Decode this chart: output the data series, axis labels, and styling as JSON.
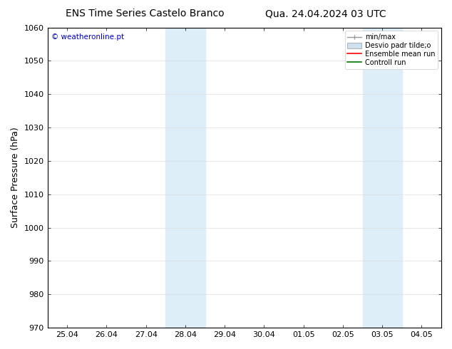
{
  "title_left": "ENS Time Series Castelo Branco",
  "title_right": "Qua. 24.04.2024 03 UTC",
  "ylabel": "Surface Pressure (hPa)",
  "ylim": [
    970,
    1060
  ],
  "yticks": [
    970,
    980,
    990,
    1000,
    1010,
    1020,
    1030,
    1040,
    1050,
    1060
  ],
  "xtick_labels": [
    "25.04",
    "26.04",
    "27.04",
    "28.04",
    "29.04",
    "30.04",
    "01.05",
    "02.05",
    "03.05",
    "04.05"
  ],
  "watermark": "© weatheronline.pt",
  "watermark_color": "#0000cc",
  "background_color": "#ffffff",
  "shaded_color": "#ddeef8",
  "shaded_regions": [
    {
      "xstart": 2.5,
      "xend": 3.5
    },
    {
      "xstart": 7.5,
      "xend": 8.5
    }
  ],
  "legend_entries": [
    {
      "label": "min/max",
      "color": "#aaaaaa",
      "style": "errorbar"
    },
    {
      "label": "Desvio padr tilde;o",
      "color": "#cce0f0",
      "style": "bar"
    },
    {
      "label": "Ensemble mean run",
      "color": "#ff0000",
      "style": "line"
    },
    {
      "label": "Controll run",
      "color": "#007700",
      "style": "line"
    }
  ],
  "title_fontsize": 10,
  "axis_fontsize": 9,
  "tick_fontsize": 8,
  "legend_fontsize": 7,
  "fig_width": 6.34,
  "fig_height": 4.9,
  "dpi": 100
}
